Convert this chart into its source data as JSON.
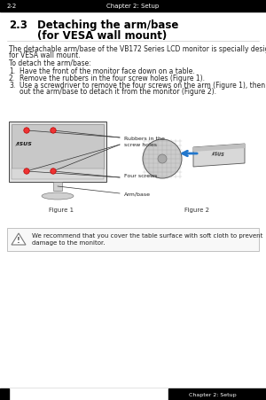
{
  "title_num": "2.3",
  "title_line1": "Detaching the arm/base",
  "title_line2": "(for VESA wall mount)",
  "body_text1": "The detachable arm/base of the VB172 Series LCD monitor is specially designed",
  "body_text1b": "for VESA wall mount.",
  "body_text2": "To detach the arm/base:",
  "step1": "Have the front of the monitor face down on a table.",
  "step2": "Remove the rubbers in the four screw holes (Figure 1).",
  "step3a": "Use a screwdriver to remove the four screws on the arm (Figure 1), then slide",
  "step3b": "out the arm/base to detach it from the monitor (Figure 2).",
  "fig1_label": "Figure 1",
  "fig2_label": "Figure 2",
  "label_rubbers": "Rubbers in the",
  "label_rubbers2": "screw holes",
  "label_screws": "Four screws",
  "label_armbase": "Arm/base",
  "note_text1": "We recommend that you cover the table surface with soft cloth to prevent",
  "note_text2": "damage to the monitor.",
  "footer_text": "Chapter 2: Setup",
  "bg_color": "#ffffff",
  "header_bg": "#000000",
  "header_text_color": "#ffffff",
  "footer_bg": "#000000",
  "footer_text_color": "#ffffff",
  "title_color": "#000000",
  "body_color": "#222222",
  "note_box_border": "#aaaaaa"
}
